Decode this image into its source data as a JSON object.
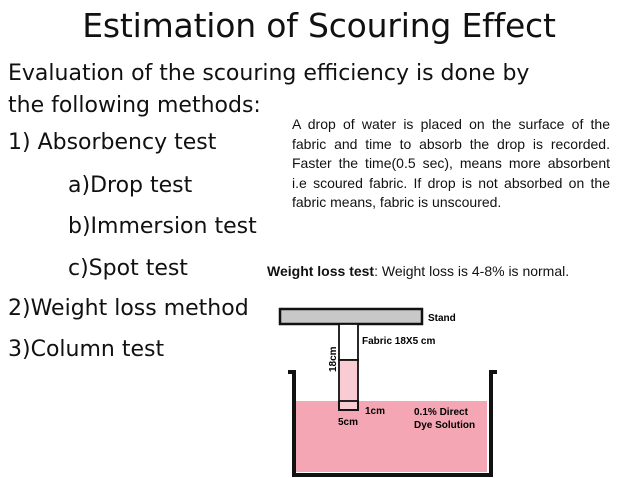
{
  "slide": {
    "title": "Estimation of Scouring Effect",
    "intro_line1": "Evaluation of the scouring efficiency is done by",
    "intro_line2": "the following methods:",
    "methods": [
      "1) Absorbency test",
      "a)Drop test",
      "b)Immersion test",
      "c)Spot test",
      "2)Weight loss method",
      "3)Column test"
    ],
    "drop_test_note": "A drop of water is placed on the surface of the fabric and time to absorb the drop is recorded. Faster the time(0.5 sec), means more absorbent i.e scoured fabric. If drop is not absorbed on the fabric means, fabric is unscoured.",
    "weight_loss_label": "Weight loss test",
    "weight_loss_text": ": Weight loss is 4-8% is normal."
  },
  "diagram": {
    "stand_label": "Stand",
    "fabric_label": "Fabric 18X5 cm",
    "height_label": "18cm",
    "width_label": "5cm",
    "depth_label": "1cm",
    "solution_label_line1": "0.1% Direct",
    "solution_label_line2": "Dye Solution",
    "liquid_color": "#f4a6b4",
    "stand_color": "#c8c8c8",
    "wick_color": "#f9ccd4"
  }
}
